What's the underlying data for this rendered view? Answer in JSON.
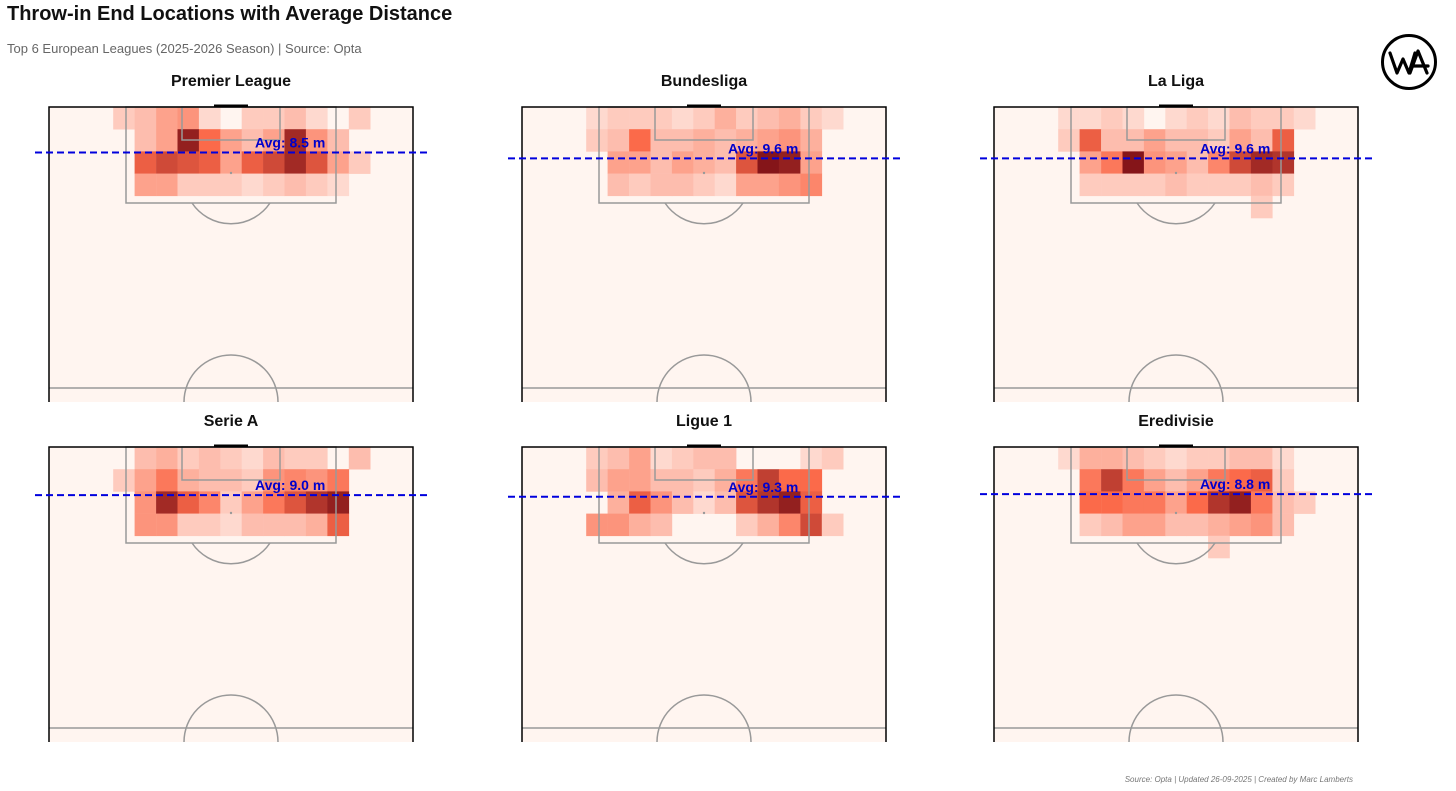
{
  "header": {
    "title": "Throw-in End Locations with Average Distance",
    "subtitle": "Top 6 European Leagues (2025-2026 Season) | Source: Opta"
  },
  "logo": {
    "text": "WA",
    "icon": "wa-logo-icon"
  },
  "footer": {
    "text": "Source: Opta | Updated 26-09-2025 | Created by Marc Lamberts"
  },
  "colors": {
    "background": "#fff5f0",
    "heat_low": "#fff5f0",
    "heat_mid": "#fb6a4a",
    "heat_high": "#67000d",
    "avg_line": "#0000dd",
    "pitch_line": "#999999",
    "pitch_border": "#000000"
  },
  "chart_data": [
    {
      "type": "heatmap",
      "title": "Premier League",
      "avg_distance_m": 8.5,
      "avg_label": "Avg: 8.5 m",
      "grid_origin": "top goal line, left touchline",
      "grid_cols": 17,
      "cells": [
        [
          3,
          0,
          0.15
        ],
        [
          4,
          0,
          0.2
        ],
        [
          5,
          0,
          0.3
        ],
        [
          6,
          0,
          0.35
        ],
        [
          7,
          0,
          0.1
        ],
        [
          9,
          0,
          0.15
        ],
        [
          10,
          0,
          0.15
        ],
        [
          11,
          0,
          0.2
        ],
        [
          12,
          0,
          0.1
        ],
        [
          14,
          0,
          0.15
        ],
        [
          4,
          1,
          0.2
        ],
        [
          5,
          1,
          0.3
        ],
        [
          6,
          1,
          0.85
        ],
        [
          7,
          1,
          0.5
        ],
        [
          8,
          1,
          0.3
        ],
        [
          9,
          1,
          0.2
        ],
        [
          10,
          1,
          0.3
        ],
        [
          11,
          1,
          0.8
        ],
        [
          12,
          1,
          0.35
        ],
        [
          13,
          1,
          0.2
        ],
        [
          4,
          2,
          0.55
        ],
        [
          5,
          2,
          0.65
        ],
        [
          6,
          2,
          0.6
        ],
        [
          7,
          2,
          0.55
        ],
        [
          8,
          2,
          0.3
        ],
        [
          9,
          2,
          0.55
        ],
        [
          10,
          2,
          0.65
        ],
        [
          11,
          2,
          0.8
        ],
        [
          12,
          2,
          0.6
        ],
        [
          13,
          2,
          0.3
        ],
        [
          14,
          2,
          0.15
        ],
        [
          4,
          3,
          0.3
        ],
        [
          5,
          3,
          0.3
        ],
        [
          6,
          3,
          0.15
        ],
        [
          7,
          3,
          0.15
        ],
        [
          8,
          3,
          0.15
        ],
        [
          9,
          3,
          0.1
        ],
        [
          10,
          3,
          0.15
        ],
        [
          11,
          3,
          0.2
        ],
        [
          12,
          3,
          0.15
        ],
        [
          13,
          3,
          0.1
        ]
      ]
    },
    {
      "type": "heatmap",
      "title": "Bundesliga",
      "avg_distance_m": 9.6,
      "avg_label": "Avg: 9.6 m",
      "grid_origin": "top goal line, left touchline",
      "grid_cols": 17,
      "cells": [
        [
          3,
          0,
          0.1
        ],
        [
          4,
          0,
          0.15
        ],
        [
          5,
          0,
          0.15
        ],
        [
          6,
          0,
          0.15
        ],
        [
          7,
          0,
          0.1
        ],
        [
          8,
          0,
          0.15
        ],
        [
          9,
          0,
          0.25
        ],
        [
          10,
          0,
          0.15
        ],
        [
          11,
          0,
          0.2
        ],
        [
          12,
          0,
          0.25
        ],
        [
          13,
          0,
          0.15
        ],
        [
          14,
          0,
          0.1
        ],
        [
          3,
          1,
          0.15
        ],
        [
          4,
          1,
          0.2
        ],
        [
          5,
          1,
          0.5
        ],
        [
          6,
          1,
          0.2
        ],
        [
          7,
          1,
          0.2
        ],
        [
          8,
          1,
          0.25
        ],
        [
          9,
          1,
          0.2
        ],
        [
          10,
          1,
          0.25
        ],
        [
          11,
          1,
          0.3
        ],
        [
          12,
          1,
          0.35
        ],
        [
          13,
          1,
          0.25
        ],
        [
          4,
          2,
          0.3
        ],
        [
          5,
          2,
          0.3
        ],
        [
          6,
          2,
          0.2
        ],
        [
          7,
          2,
          0.3
        ],
        [
          8,
          2,
          0.25
        ],
        [
          9,
          2,
          0.2
        ],
        [
          10,
          2,
          0.6
        ],
        [
          11,
          2,
          0.9
        ],
        [
          12,
          2,
          0.85
        ],
        [
          13,
          2,
          0.3
        ],
        [
          4,
          3,
          0.2
        ],
        [
          5,
          3,
          0.15
        ],
        [
          6,
          3,
          0.2
        ],
        [
          7,
          3,
          0.2
        ],
        [
          8,
          3,
          0.15
        ],
        [
          9,
          3,
          0.1
        ],
        [
          10,
          3,
          0.3
        ],
        [
          11,
          3,
          0.3
        ],
        [
          12,
          3,
          0.35
        ],
        [
          13,
          3,
          0.4
        ]
      ]
    },
    {
      "type": "heatmap",
      "title": "La Liga",
      "avg_distance_m": 9.6,
      "avg_label": "Avg: 9.6 m",
      "grid_origin": "top goal line, left touchline",
      "grid_cols": 17,
      "cells": [
        [
          3,
          0,
          0.1
        ],
        [
          4,
          0,
          0.1
        ],
        [
          5,
          0,
          0.15
        ],
        [
          6,
          0,
          0.1
        ],
        [
          8,
          0,
          0.1
        ],
        [
          9,
          0,
          0.15
        ],
        [
          10,
          0,
          0.1
        ],
        [
          11,
          0,
          0.2
        ],
        [
          12,
          0,
          0.15
        ],
        [
          13,
          0,
          0.15
        ],
        [
          14,
          0,
          0.1
        ],
        [
          3,
          1,
          0.15
        ],
        [
          4,
          1,
          0.55
        ],
        [
          5,
          1,
          0.2
        ],
        [
          6,
          1,
          0.2
        ],
        [
          7,
          1,
          0.3
        ],
        [
          8,
          1,
          0.2
        ],
        [
          9,
          1,
          0.2
        ],
        [
          10,
          1,
          0.15
        ],
        [
          11,
          1,
          0.3
        ],
        [
          12,
          1,
          0.2
        ],
        [
          13,
          1,
          0.55
        ],
        [
          4,
          2,
          0.3
        ],
        [
          5,
          2,
          0.45
        ],
        [
          6,
          2,
          0.9
        ],
        [
          7,
          2,
          0.35
        ],
        [
          8,
          2,
          0.3
        ],
        [
          9,
          2,
          0.2
        ],
        [
          10,
          2,
          0.4
        ],
        [
          11,
          2,
          0.65
        ],
        [
          12,
          2,
          0.8
        ],
        [
          13,
          2,
          0.75
        ],
        [
          4,
          3,
          0.15
        ],
        [
          5,
          3,
          0.15
        ],
        [
          6,
          3,
          0.15
        ],
        [
          7,
          3,
          0.15
        ],
        [
          8,
          3,
          0.2
        ],
        [
          9,
          3,
          0.15
        ],
        [
          10,
          3,
          0.15
        ],
        [
          11,
          3,
          0.15
        ],
        [
          12,
          3,
          0.2
        ],
        [
          13,
          3,
          0.15
        ],
        [
          12,
          4,
          0.15
        ]
      ]
    },
    {
      "type": "heatmap",
      "title": "Serie A",
      "avg_distance_m": 9.0,
      "avg_label": "Avg: 9.0 m",
      "grid_origin": "top goal line, left touchline",
      "grid_cols": 17,
      "cells": [
        [
          4,
          0,
          0.2
        ],
        [
          5,
          0,
          0.25
        ],
        [
          6,
          0,
          0.15
        ],
        [
          7,
          0,
          0.2
        ],
        [
          8,
          0,
          0.15
        ],
        [
          9,
          0,
          0.1
        ],
        [
          10,
          0,
          0.2
        ],
        [
          11,
          0,
          0.15
        ],
        [
          12,
          0,
          0.15
        ],
        [
          14,
          0,
          0.2
        ],
        [
          3,
          1,
          0.15
        ],
        [
          4,
          1,
          0.3
        ],
        [
          5,
          1,
          0.45
        ],
        [
          6,
          1,
          0.25
        ],
        [
          7,
          1,
          0.2
        ],
        [
          8,
          1,
          0.2
        ],
        [
          9,
          1,
          0.15
        ],
        [
          10,
          1,
          0.35
        ],
        [
          11,
          1,
          0.4
        ],
        [
          12,
          1,
          0.35
        ],
        [
          13,
          1,
          0.45
        ],
        [
          4,
          2,
          0.35
        ],
        [
          5,
          2,
          0.8
        ],
        [
          6,
          2,
          0.55
        ],
        [
          7,
          2,
          0.4
        ],
        [
          8,
          2,
          0.15
        ],
        [
          9,
          2,
          0.3
        ],
        [
          10,
          2,
          0.45
        ],
        [
          11,
          2,
          0.6
        ],
        [
          12,
          2,
          0.75
        ],
        [
          13,
          2,
          0.85
        ],
        [
          4,
          3,
          0.35
        ],
        [
          5,
          3,
          0.35
        ],
        [
          6,
          3,
          0.15
        ],
        [
          7,
          3,
          0.15
        ],
        [
          8,
          3,
          0.1
        ],
        [
          9,
          3,
          0.2
        ],
        [
          10,
          3,
          0.2
        ],
        [
          11,
          3,
          0.2
        ],
        [
          12,
          3,
          0.25
        ],
        [
          13,
          3,
          0.55
        ]
      ]
    },
    {
      "type": "heatmap",
      "title": "Ligue 1",
      "avg_distance_m": 9.3,
      "avg_label": "Avg: 9.3 m",
      "grid_origin": "top goal line, left touchline",
      "grid_cols": 17,
      "cells": [
        [
          3,
          0,
          0.15
        ],
        [
          4,
          0,
          0.2
        ],
        [
          5,
          0,
          0.3
        ],
        [
          6,
          0,
          0.1
        ],
        [
          7,
          0,
          0.15
        ],
        [
          8,
          0,
          0.2
        ],
        [
          9,
          0,
          0.2
        ],
        [
          13,
          0,
          0.1
        ],
        [
          14,
          0,
          0.15
        ],
        [
          3,
          1,
          0.2
        ],
        [
          4,
          1,
          0.3
        ],
        [
          5,
          1,
          0.3
        ],
        [
          6,
          1,
          0.2
        ],
        [
          7,
          1,
          0.2
        ],
        [
          8,
          1,
          0.15
        ],
        [
          9,
          1,
          0.25
        ],
        [
          10,
          1,
          0.45
        ],
        [
          11,
          1,
          0.7
        ],
        [
          12,
          1,
          0.5
        ],
        [
          13,
          1,
          0.5
        ],
        [
          4,
          2,
          0.25
        ],
        [
          5,
          2,
          0.55
        ],
        [
          6,
          2,
          0.35
        ],
        [
          7,
          2,
          0.2
        ],
        [
          8,
          2,
          0.1
        ],
        [
          9,
          2,
          0.2
        ],
        [
          10,
          2,
          0.6
        ],
        [
          11,
          2,
          0.75
        ],
        [
          12,
          2,
          0.85
        ],
        [
          13,
          2,
          0.55
        ],
        [
          3,
          3,
          0.35
        ],
        [
          4,
          3,
          0.35
        ],
        [
          5,
          3,
          0.25
        ],
        [
          6,
          3,
          0.2
        ],
        [
          10,
          3,
          0.15
        ],
        [
          11,
          3,
          0.25
        ],
        [
          12,
          3,
          0.4
        ],
        [
          13,
          3,
          0.65
        ],
        [
          14,
          3,
          0.15
        ]
      ]
    },
    {
      "type": "heatmap",
      "title": "Eredivisie",
      "avg_distance_m": 8.8,
      "avg_label": "Avg: 8.8 m",
      "grid_origin": "top goal line, left touchline",
      "grid_cols": 17,
      "cells": [
        [
          3,
          0,
          0.1
        ],
        [
          4,
          0,
          0.25
        ],
        [
          5,
          0,
          0.25
        ],
        [
          6,
          0,
          0.2
        ],
        [
          7,
          0,
          0.15
        ],
        [
          8,
          0,
          0.1
        ],
        [
          9,
          0,
          0.15
        ],
        [
          10,
          0,
          0.15
        ],
        [
          11,
          0,
          0.2
        ],
        [
          12,
          0,
          0.2
        ],
        [
          13,
          0,
          0.1
        ],
        [
          4,
          1,
          0.45
        ],
        [
          5,
          1,
          0.7
        ],
        [
          6,
          1,
          0.45
        ],
        [
          7,
          1,
          0.3
        ],
        [
          8,
          1,
          0.2
        ],
        [
          9,
          1,
          0.3
        ],
        [
          10,
          1,
          0.45
        ],
        [
          11,
          1,
          0.5
        ],
        [
          12,
          1,
          0.55
        ],
        [
          13,
          1,
          0.15
        ],
        [
          4,
          2,
          0.5
        ],
        [
          5,
          2,
          0.5
        ],
        [
          6,
          2,
          0.45
        ],
        [
          7,
          2,
          0.45
        ],
        [
          8,
          2,
          0.3
        ],
        [
          9,
          2,
          0.5
        ],
        [
          10,
          2,
          0.75
        ],
        [
          11,
          2,
          0.85
        ],
        [
          12,
          2,
          0.45
        ],
        [
          13,
          2,
          0.2
        ],
        [
          14,
          2,
          0.15
        ],
        [
          4,
          3,
          0.15
        ],
        [
          5,
          3,
          0.2
        ],
        [
          6,
          3,
          0.3
        ],
        [
          7,
          3,
          0.3
        ],
        [
          8,
          3,
          0.2
        ],
        [
          9,
          3,
          0.2
        ],
        [
          10,
          3,
          0.25
        ],
        [
          11,
          3,
          0.3
        ],
        [
          12,
          3,
          0.35
        ],
        [
          13,
          3,
          0.2
        ],
        [
          10,
          4,
          0.15
        ]
      ]
    }
  ]
}
